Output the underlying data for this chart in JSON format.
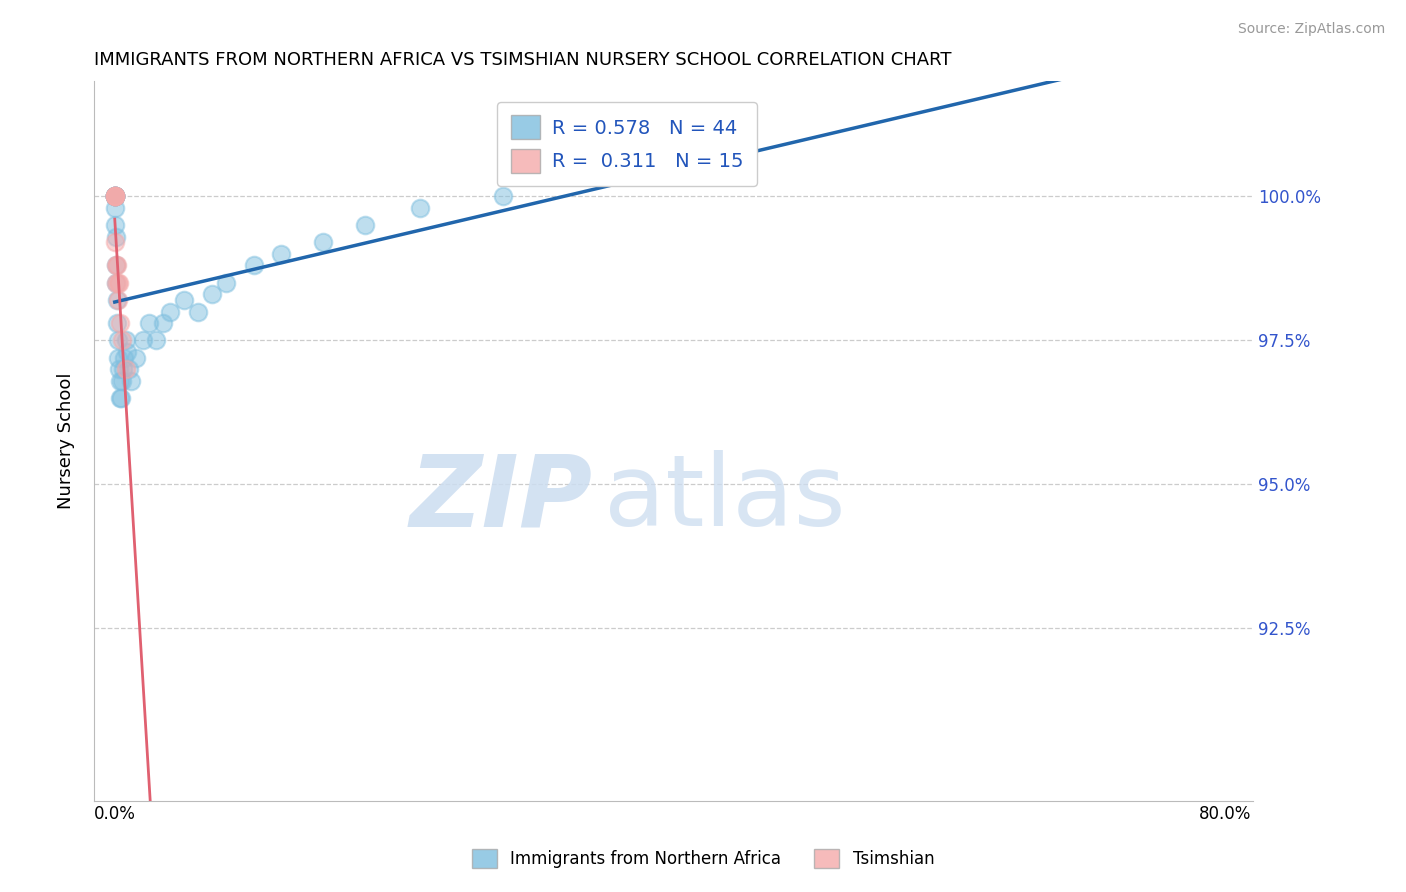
{
  "title": "IMMIGRANTS FROM NORTHERN AFRICA VS TSIMSHIAN NURSERY SCHOOL CORRELATION CHART",
  "source": "Source: ZipAtlas.com",
  "ylabel": "Nursery School",
  "xlim": [
    -1.5,
    82
  ],
  "ylim": [
    89.5,
    102.0
  ],
  "yticks": [
    92.5,
    95.0,
    97.5,
    100.0
  ],
  "ytick_labels": [
    "92.5%",
    "95.0%",
    "97.5%",
    "100.0%"
  ],
  "xticks": [
    0.0,
    20.0,
    40.0,
    60.0,
    80.0
  ],
  "xtick_labels": [
    "0.0%",
    "",
    "",
    "",
    "80.0%"
  ],
  "legend1_label": "Immigrants from Northern Africa",
  "legend2_label": "Tsimshian",
  "R_blue": 0.578,
  "N_blue": 44,
  "R_pink": 0.311,
  "N_pink": 15,
  "blue_color": "#7fbfdf",
  "pink_color": "#f4aaaa",
  "blue_line_color": "#2166ac",
  "pink_line_color": "#e06070",
  "blue_x": [
    0.0,
    0.0,
    0.0,
    0.0,
    0.0,
    0.0,
    0.0,
    0.0,
    0.05,
    0.05,
    0.1,
    0.1,
    0.1,
    0.15,
    0.15,
    0.2,
    0.25,
    0.3,
    0.35,
    0.4,
    0.45,
    0.5,
    0.6,
    0.7,
    0.8,
    0.9,
    1.0,
    1.2,
    1.5,
    2.0,
    2.5,
    3.0,
    3.5,
    4.0,
    5.0,
    6.0,
    7.0,
    8.0,
    10.0,
    12.0,
    15.0,
    18.0,
    22.0,
    28.0
  ],
  "blue_y": [
    100.0,
    100.0,
    100.0,
    100.0,
    100.0,
    100.0,
    100.0,
    100.0,
    99.8,
    99.5,
    99.3,
    98.8,
    98.5,
    98.2,
    97.8,
    97.5,
    97.2,
    97.0,
    96.8,
    96.5,
    96.5,
    96.8,
    97.0,
    97.2,
    97.5,
    97.3,
    97.0,
    96.8,
    97.2,
    97.5,
    97.8,
    97.5,
    97.8,
    98.0,
    98.2,
    98.0,
    98.3,
    98.5,
    98.8,
    99.0,
    99.2,
    99.5,
    99.8,
    100.0
  ],
  "pink_x": [
    0.0,
    0.0,
    0.0,
    0.0,
    0.0,
    0.05,
    0.1,
    0.1,
    0.15,
    0.2,
    0.25,
    0.3,
    0.4,
    0.5,
    0.8
  ],
  "pink_y": [
    100.0,
    100.0,
    100.0,
    100.0,
    100.0,
    99.2,
    98.8,
    98.5,
    98.8,
    98.5,
    98.2,
    98.5,
    97.8,
    97.5,
    97.0
  ],
  "blue_trendline": [
    96.5,
    100.5
  ],
  "pink_trendline": [
    99.5,
    100.2
  ]
}
